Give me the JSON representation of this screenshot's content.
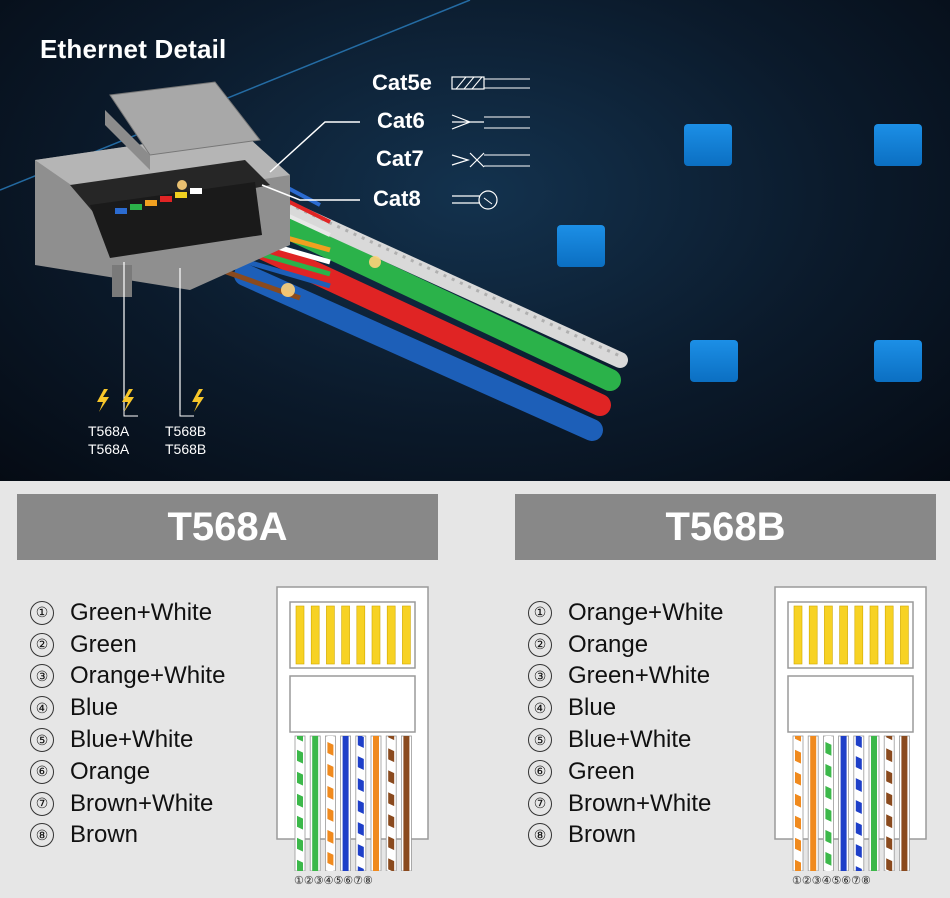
{
  "hero": {
    "title": "Ethernet Detail",
    "cables": [
      "Cat5e",
      "Cat6",
      "Cat7",
      "Cat8"
    ],
    "tags_left": [
      "T568A",
      "T568A"
    ],
    "tags_right": [
      "T568B",
      "T568B"
    ],
    "wire_labels": [
      "Cat8",
      "T568B",
      "T568A",
      "T568B",
      "T568B"
    ],
    "accent": "#1a8ae0"
  },
  "t568a": {
    "title": "T568A",
    "items": [
      {
        "num": "①",
        "label": "Green+White"
      },
      {
        "num": "②",
        "label": "Green"
      },
      {
        "num": "③",
        "label": "Orange+White"
      },
      {
        "num": "④",
        "label": "Blue"
      },
      {
        "num": "⑤",
        "label": "Blue+White"
      },
      {
        "num": "⑥",
        "label": "Orange"
      },
      {
        "num": "⑦",
        "label": "Brown+White"
      },
      {
        "num": "⑧",
        "label": "Brown"
      }
    ],
    "pins": "①②③④⑤⑥⑦⑧",
    "wire_colors": [
      {
        "base": "#3cb84a",
        "striped": true
      },
      {
        "base": "#3cb84a",
        "striped": false
      },
      {
        "base": "#f08a1e",
        "striped": true
      },
      {
        "base": "#1e3fc8",
        "striped": false
      },
      {
        "base": "#1e3fc8",
        "striped": true
      },
      {
        "base": "#f08a1e",
        "striped": false
      },
      {
        "base": "#8a4a1e",
        "striped": true
      },
      {
        "base": "#8a4a1e",
        "striped": false
      }
    ]
  },
  "t568b": {
    "title": "T568B",
    "items": [
      {
        "num": "①",
        "label": "Orange+White"
      },
      {
        "num": "②",
        "label": "Orange"
      },
      {
        "num": "③",
        "label": "Green+White"
      },
      {
        "num": "④",
        "label": "Blue"
      },
      {
        "num": "⑤",
        "label": "Blue+White"
      },
      {
        "num": "⑥",
        "label": "Green"
      },
      {
        "num": "⑦",
        "label": "Brown+White"
      },
      {
        "num": "⑧",
        "label": "Brown"
      }
    ],
    "pins": "①②③④⑤⑥⑦⑧",
    "wire_colors": [
      {
        "base": "#f08a1e",
        "striped": true
      },
      {
        "base": "#f08a1e",
        "striped": false
      },
      {
        "base": "#3cb84a",
        "striped": true
      },
      {
        "base": "#1e3fc8",
        "striped": false
      },
      {
        "base": "#1e3fc8",
        "striped": true
      },
      {
        "base": "#3cb84a",
        "striped": false
      },
      {
        "base": "#8a4a1e",
        "striped": true
      },
      {
        "base": "#8a4a1e",
        "striped": false
      }
    ]
  }
}
